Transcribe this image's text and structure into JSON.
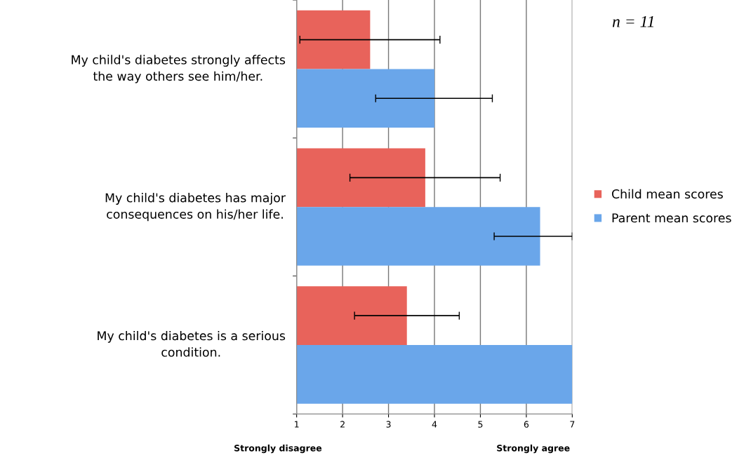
{
  "chart_data": {
    "type": "bar",
    "orientation": "horizontal",
    "categories": [
      "My child's diabetes strongly affects the way others see him/her.",
      "My child's diabetes has major consequences on his/her life.",
      "My child's diabetes is a serious condition."
    ],
    "series": [
      {
        "name": "Child mean scores",
        "color": "#e8635b",
        "values": [
          2.6,
          3.8,
          3.4
        ],
        "errors": [
          [
            1.07,
            4.12
          ],
          [
            2.16,
            5.43
          ],
          [
            2.26,
            4.54
          ]
        ]
      },
      {
        "name": "Parent mean scores",
        "color": "#6aa6ea",
        "values": [
          4.0,
          6.3,
          7.0
        ],
        "errors": [
          [
            2.72,
            5.26
          ],
          [
            5.3,
            7.0
          ],
          null
        ]
      }
    ],
    "xlim": [
      1,
      7
    ],
    "xticks": [
      1,
      2,
      3,
      4,
      5,
      6,
      7
    ],
    "grid": "x",
    "legend": "right",
    "annotations": [
      "n = 11",
      "Strongly disagree",
      "Strongly agree"
    ]
  }
}
